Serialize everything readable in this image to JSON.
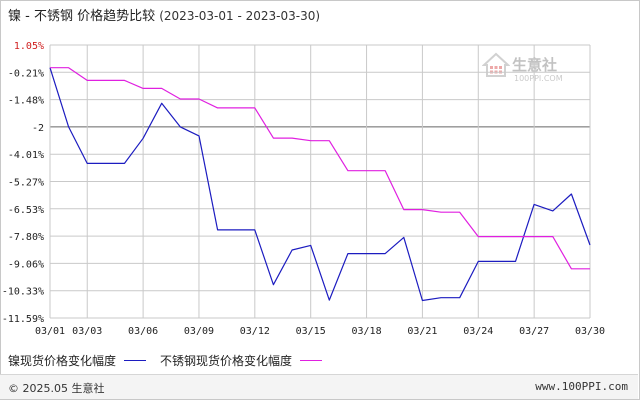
{
  "title": {
    "text": "镍 - 不锈钢 价格趋势比较",
    "range": "(2023-03-01 - 2023-03-30)"
  },
  "watermark": {
    "name": "生意社",
    "url": "100PPI.COM"
  },
  "footer": {
    "copyright": "© 2025.05 生意社",
    "site": "www.100PPI.com"
  },
  "colors": {
    "nickel": "#1c1cc0",
    "steel": "#e020e0",
    "grid": "#c9c9c9",
    "baseline": "#666666"
  },
  "chart_data": {
    "type": "line",
    "categories": [
      "03/01",
      "03/02",
      "03/03",
      "03/04",
      "03/05",
      "03/06",
      "03/07",
      "03/08",
      "03/09",
      "03/10",
      "03/11",
      "03/12",
      "03/13",
      "03/14",
      "03/15",
      "03/16",
      "03/17",
      "03/18",
      "03/19",
      "03/20",
      "03/21",
      "03/22",
      "03/23",
      "03/24",
      "03/25",
      "03/26",
      "03/27",
      "03/28",
      "03/29",
      "03/30"
    ],
    "xticks": [
      "03/01",
      "03/03",
      "03/06",
      "03/09",
      "03/12",
      "03/15",
      "03/18",
      "03/21",
      "03/24",
      "03/27",
      "03/30"
    ],
    "ylabels": [
      "1.05%",
      "-0.21%",
      "-1.48%",
      "-2",
      "-4.01%",
      "-5.27%",
      "-6.53%",
      "-7.80%",
      "-9.06%",
      "-10.33%",
      "-11.59%"
    ],
    "ylim": [
      -11.59,
      1.05
    ],
    "baseline": -2.74,
    "series": [
      {
        "name": "镍现货价格变化幅度",
        "values": [
          0,
          -2.74,
          -4.43,
          -4.43,
          -4.43,
          -3.27,
          -1.65,
          -2.74,
          -3.16,
          -7.51,
          -7.51,
          -7.51,
          -10.05,
          -8.44,
          -8.23,
          -10.76,
          -8.61,
          -8.61,
          -8.61,
          -7.86,
          -10.78,
          -10.65,
          -10.65,
          -8.97,
          -8.97,
          -8.97,
          -6.33,
          -6.63,
          -5.85,
          -8.21
        ]
      },
      {
        "name": "不锈钢现货价格变化幅度",
        "values": [
          0,
          0,
          -0.59,
          -0.59,
          -0.59,
          -0.96,
          -0.96,
          -1.45,
          -1.45,
          -1.86,
          -1.86,
          -1.86,
          -3.26,
          -3.26,
          -3.38,
          -3.38,
          -4.77,
          -4.77,
          -4.77,
          -6.57,
          -6.57,
          -6.69,
          -6.69,
          -7.82,
          -7.82,
          -7.82,
          -7.82,
          -7.82,
          -9.31,
          -9.31
        ]
      }
    ]
  }
}
